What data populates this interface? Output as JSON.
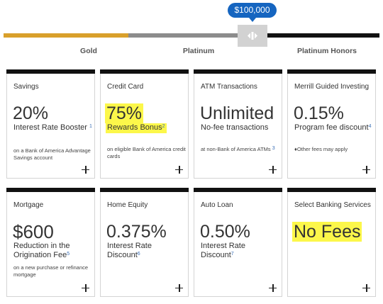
{
  "slider": {
    "value_label": "$100,000",
    "tiers": [
      "Gold",
      "Platinum",
      "Platinum Honors"
    ],
    "colors": {
      "gold": "#d9a02b",
      "platinum": "#8c8c8c",
      "honors": "#111111",
      "bubble": "#1565c0"
    }
  },
  "cards": [
    {
      "title": "Savings",
      "big": "20%",
      "sub": "Interest Rate Booster",
      "sub_sup": "1",
      "foot": "on a Bank of America Advantage Savings account",
      "foot_sup": ""
    },
    {
      "title": "Credit Card",
      "big": "75%",
      "sub": "Rewards Bonus",
      "sub_sup": "2",
      "foot": "on eligible Bank of America credit cards",
      "foot_sup": ""
    },
    {
      "title": "ATM Transactions",
      "big": "Unlimited",
      "sub": "No-fee transactions",
      "sub_sup": "",
      "foot": "at non-Bank of America ATMs",
      "foot_sup": "3"
    },
    {
      "title": "Merrill Guided Investing",
      "big": "0.15%",
      "sub": "Program fee discount",
      "sub_sup": "4",
      "foot": "♦Other fees may apply",
      "foot_sup": ""
    },
    {
      "title": "Mortgage",
      "big": "$600",
      "sub": "Reduction in the Origination Fee",
      "sub_sup": "5",
      "foot": "on a new purchase or refinance mortgage",
      "foot_sup": ""
    },
    {
      "title": "Home Equity",
      "big": "0.375%",
      "sub": "Interest Rate Discount",
      "sub_sup": "6",
      "foot": "",
      "foot_sup": ""
    },
    {
      "title": "Auto Loan",
      "big": "0.50%",
      "sub": "Interest Rate Discount",
      "sub_sup": "7",
      "foot": "",
      "foot_sup": ""
    },
    {
      "title": "Select Banking Services",
      "big": "No Fees",
      "sub": "",
      "sub_sup": "",
      "foot": "",
      "foot_sup": ""
    }
  ],
  "highlight_color": "#fcf74a"
}
